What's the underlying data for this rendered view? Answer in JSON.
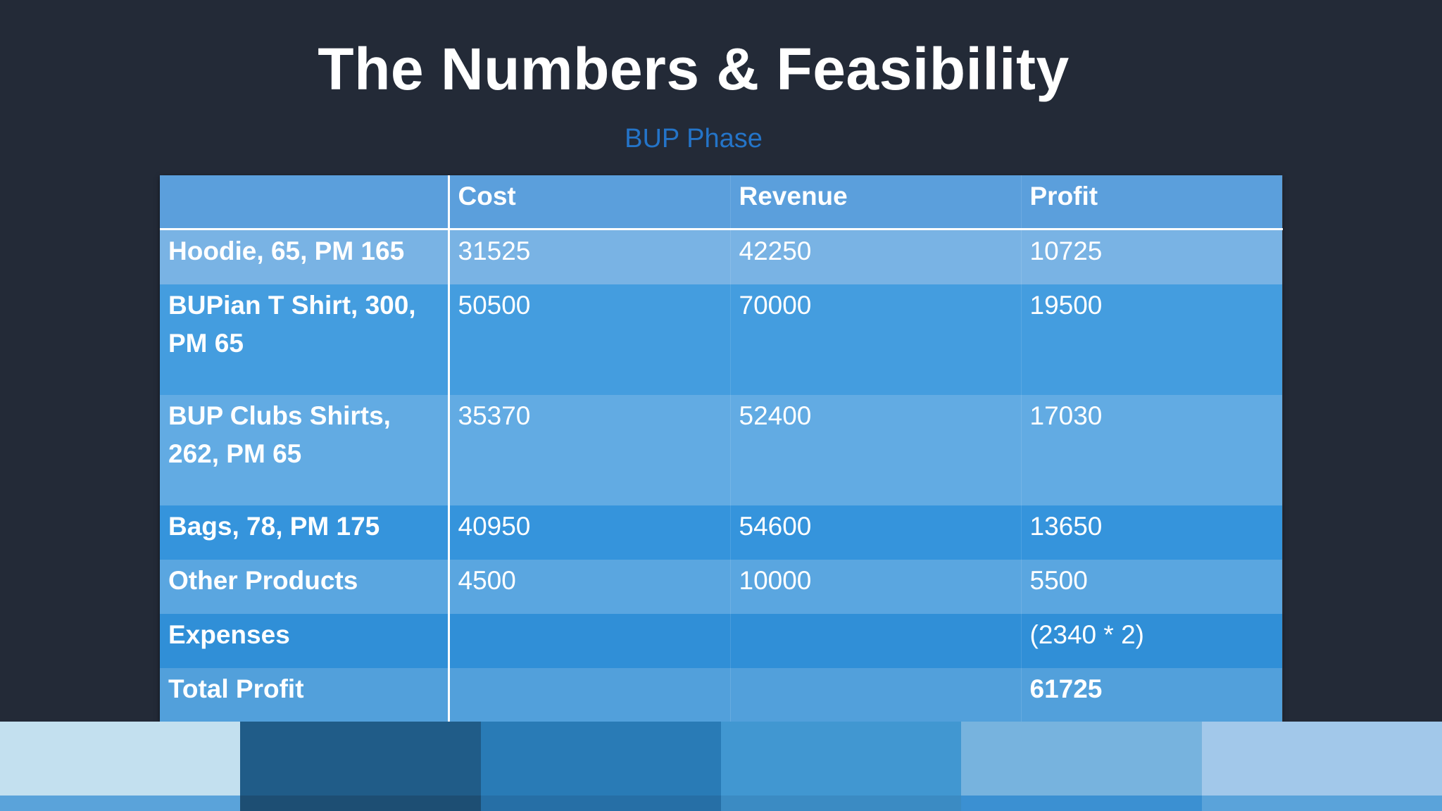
{
  "slide": {
    "title": "The Numbers & Feasibility",
    "subtitle": "BUP Phase"
  },
  "table": {
    "headers": [
      "",
      "Cost",
      "Revenue",
      "Profit"
    ],
    "rows": [
      {
        "label": "Hoodie, 65, PM 165",
        "cost": "31525",
        "revenue": "42250",
        "profit": "10725"
      },
      {
        "label": "BUPian T Shirt, 300, PM 65",
        "cost": "50500",
        "revenue": "70000",
        "profit": "19500"
      },
      {
        "label": "BUP Clubs Shirts, 262, PM 65",
        "cost": "35370",
        "revenue": "52400",
        "profit": "17030"
      },
      {
        "label": "Bags, 78, PM 175",
        "cost": "40950",
        "revenue": "54600",
        "profit": "13650"
      },
      {
        "label": "Other Products",
        "cost": "4500",
        "revenue": "10000",
        "profit": "5500"
      },
      {
        "label": "Expenses",
        "cost": "",
        "revenue": "",
        "profit": "(2340 * 2)"
      },
      {
        "label": "Total Profit",
        "cost": "",
        "revenue": "",
        "profit": "61725"
      }
    ]
  },
  "colors": {
    "background": "#232a37",
    "title": "#ffffff",
    "subtitle": "#2474c8",
    "header_row": "#5b9fdc"
  }
}
